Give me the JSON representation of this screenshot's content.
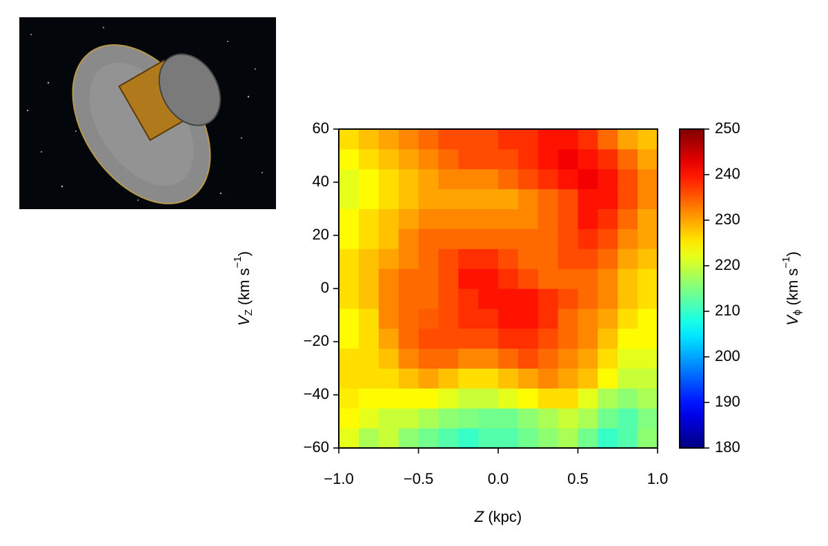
{
  "chart_data": {
    "type": "heatmap",
    "xlabel_parts": [
      "Z",
      " (kpc)"
    ],
    "ylabel_parts": [
      "V",
      "Z",
      " (km s",
      "−1",
      ")"
    ],
    "colorbar_label_parts": [
      "V",
      "ϕ",
      " (km s",
      "−1",
      ")"
    ],
    "colormap": "jet",
    "xlim": [
      -1,
      1
    ],
    "ylim": [
      -60,
      60
    ],
    "clim": [
      180,
      250
    ],
    "xticks": [
      {
        "value": -1,
        "label": "−1.0"
      },
      {
        "value": -0.5,
        "label": "−0.5"
      },
      {
        "value": 0,
        "label": "0.0"
      },
      {
        "value": 0.5,
        "label": "0.5"
      },
      {
        "value": 1,
        "label": "1.0"
      }
    ],
    "yticks": [
      {
        "value": -60,
        "label": "−60"
      },
      {
        "value": -40,
        "label": "−40"
      },
      {
        "value": -20,
        "label": "−20"
      },
      0,
      20,
      40,
      60
    ],
    "cticks": [
      180,
      190,
      200,
      210,
      220,
      230,
      240,
      250
    ],
    "xbins": [
      -1,
      -0.875,
      -0.75,
      -0.625,
      -0.5,
      -0.375,
      -0.25,
      -0.125,
      0,
      0.125,
      0.25,
      0.375,
      0.5,
      0.625,
      0.75,
      0.875,
      1
    ],
    "ybins": [
      -60,
      -52.5,
      -45,
      -37.5,
      -30,
      -22.5,
      -15,
      -7.5,
      0,
      7.5,
      15,
      22.5,
      30,
      37.5,
      45,
      52.5,
      60
    ],
    "values": [
      [
        222,
        218,
        220,
        216,
        214,
        212,
        210,
        212,
        212,
        214,
        216,
        218,
        214,
        210,
        212,
        216
      ],
      [
        224,
        222,
        220,
        220,
        218,
        216,
        215,
        214,
        214,
        216,
        218,
        220,
        218,
        214,
        212,
        215
      ],
      [
        225,
        224,
        224,
        224,
        224,
        222,
        220,
        220,
        222,
        224,
        226,
        226,
        222,
        218,
        216,
        218
      ],
      [
        226,
        226,
        226,
        228,
        230,
        228,
        226,
        226,
        228,
        230,
        232,
        230,
        228,
        224,
        220,
        220
      ],
      [
        226,
        226,
        228,
        232,
        234,
        234,
        232,
        232,
        234,
        236,
        234,
        232,
        230,
        226,
        222,
        222
      ],
      [
        224,
        226,
        230,
        234,
        236,
        236,
        236,
        236,
        238,
        238,
        236,
        234,
        232,
        228,
        224,
        224
      ],
      [
        224,
        226,
        232,
        234,
        235,
        236,
        238,
        238,
        240,
        240,
        238,
        234,
        232,
        230,
        226,
        224
      ],
      [
        226,
        228,
        232,
        234,
        234,
        236,
        238,
        240,
        240,
        240,
        238,
        236,
        234,
        232,
        228,
        226
      ],
      [
        226,
        228,
        232,
        234,
        234,
        236,
        240,
        240,
        238,
        236,
        234,
        234,
        234,
        232,
        228,
        226
      ],
      [
        226,
        228,
        230,
        232,
        234,
        236,
        238,
        238,
        236,
        234,
        234,
        236,
        236,
        234,
        230,
        228
      ],
      [
        224,
        226,
        228,
        232,
        234,
        234,
        234,
        234,
        234,
        234,
        234,
        236,
        238,
        236,
        232,
        230
      ],
      [
        224,
        226,
        228,
        230,
        232,
        232,
        232,
        232,
        232,
        232,
        234,
        236,
        240,
        238,
        234,
        230
      ],
      [
        222,
        224,
        226,
        228,
        230,
        230,
        230,
        230,
        230,
        232,
        234,
        236,
        240,
        240,
        236,
        232
      ],
      [
        222,
        224,
        226,
        228,
        230,
        232,
        232,
        232,
        234,
        236,
        238,
        240,
        242,
        240,
        236,
        232
      ],
      [
        224,
        226,
        228,
        230,
        232,
        234,
        236,
        236,
        236,
        238,
        240,
        242,
        240,
        238,
        234,
        230
      ],
      [
        226,
        228,
        230,
        232,
        234,
        236,
        236,
        236,
        238,
        238,
        240,
        240,
        238,
        234,
        230,
        228
      ]
    ]
  }
}
